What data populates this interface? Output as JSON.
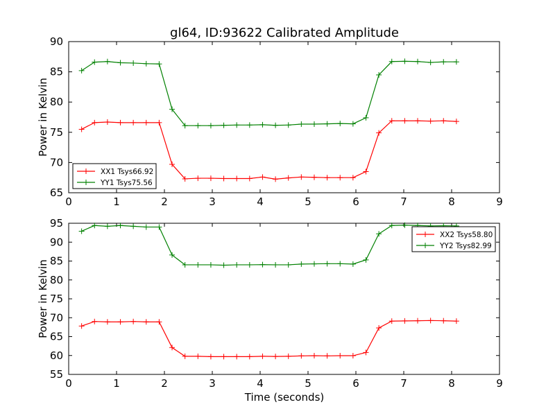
{
  "chart_data": [
    {
      "type": "line",
      "title": "gl64, ID:93622 Calibrated Amplitude",
      "xlabel": "",
      "ylabel": "Power in Kelvin",
      "xlim": [
        0,
        9
      ],
      "ylim": [
        65,
        90
      ],
      "xticks": [
        "0",
        "1",
        "2",
        "3",
        "4",
        "5",
        "6",
        "7",
        "8",
        "9"
      ],
      "yticks": [
        "65",
        "70",
        "75",
        "80",
        "85",
        "90"
      ],
      "grid": false,
      "legend": "lower-left",
      "x": [
        0.27,
        0.54,
        0.81,
        1.08,
        1.35,
        1.62,
        1.89,
        2.16,
        2.43,
        2.7,
        2.97,
        3.24,
        3.51,
        3.78,
        4.05,
        4.32,
        4.59,
        4.86,
        5.13,
        5.4,
        5.67,
        5.94,
        6.21,
        6.48,
        6.75,
        7.02,
        7.29,
        7.56,
        7.83,
        8.1
      ],
      "series": [
        {
          "name": "XX1 Tsys66.92",
          "color": "#ff0000",
          "values": [
            75.5,
            76.6,
            76.7,
            76.6,
            76.6,
            76.6,
            76.6,
            69.7,
            67.3,
            67.4,
            67.4,
            67.35,
            67.35,
            67.35,
            67.6,
            67.25,
            67.45,
            67.6,
            67.55,
            67.5,
            67.5,
            67.5,
            68.5,
            74.9,
            76.9,
            76.9,
            76.9,
            76.85,
            76.9,
            76.8
          ]
        },
        {
          "name": "YY1 Tsys75.56",
          "color": "#008000",
          "values": [
            85.2,
            86.6,
            86.7,
            86.5,
            86.45,
            86.35,
            86.3,
            78.8,
            76.1,
            76.1,
            76.1,
            76.15,
            76.2,
            76.2,
            76.25,
            76.15,
            76.2,
            76.35,
            76.35,
            76.4,
            76.45,
            76.4,
            77.4,
            84.5,
            86.7,
            86.75,
            86.7,
            86.55,
            86.65,
            86.65
          ]
        }
      ]
    },
    {
      "type": "line",
      "title": "",
      "xlabel": "Time (seconds)",
      "ylabel": "Power in Kelvin",
      "xlim": [
        0,
        9
      ],
      "ylim": [
        55,
        95
      ],
      "xticks": [
        "0",
        "1",
        "2",
        "3",
        "4",
        "5",
        "6",
        "7",
        "8",
        "9"
      ],
      "yticks": [
        "55",
        "60",
        "65",
        "70",
        "75",
        "80",
        "85",
        "90",
        "95"
      ],
      "grid": false,
      "legend": "upper-right",
      "x": [
        0.27,
        0.54,
        0.81,
        1.08,
        1.35,
        1.62,
        1.89,
        2.16,
        2.43,
        2.7,
        2.97,
        3.24,
        3.51,
        3.78,
        4.05,
        4.32,
        4.59,
        4.86,
        5.13,
        5.4,
        5.67,
        5.94,
        6.21,
        6.48,
        6.75,
        7.02,
        7.29,
        7.56,
        7.83,
        8.1
      ],
      "series": [
        {
          "name": "XX2 Tsys58.80",
          "color": "#ff0000",
          "values": [
            67.8,
            69.0,
            68.9,
            68.9,
            69.0,
            68.9,
            68.9,
            62.1,
            59.8,
            59.8,
            59.7,
            59.7,
            59.7,
            59.7,
            59.8,
            59.75,
            59.8,
            59.9,
            59.95,
            59.9,
            59.95,
            59.95,
            60.8,
            67.3,
            69.1,
            69.15,
            69.2,
            69.25,
            69.2,
            69.1
          ]
        },
        {
          "name": "YY2 Tsys82.99",
          "color": "#008000",
          "values": [
            92.9,
            94.4,
            94.2,
            94.4,
            94.2,
            94.0,
            94.0,
            86.6,
            84.0,
            84.0,
            84.0,
            83.9,
            84.0,
            84.0,
            84.05,
            84.0,
            84.0,
            84.2,
            84.25,
            84.3,
            84.3,
            84.2,
            85.3,
            92.2,
            94.4,
            94.5,
            94.4,
            94.3,
            94.35,
            94.3
          ]
        }
      ]
    }
  ]
}
